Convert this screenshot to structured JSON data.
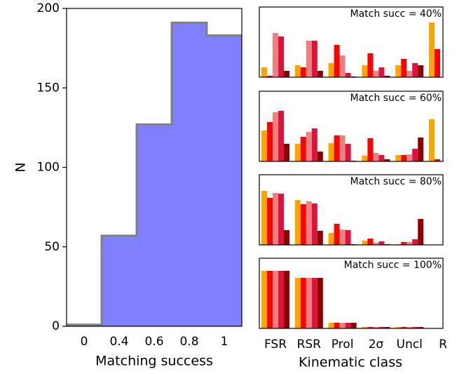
{
  "chart_data": [
    {
      "type": "step",
      "categories": [
        "0",
        "0.4",
        "0.6",
        "0.8",
        "1"
      ],
      "values": [
        1,
        57,
        127,
        191,
        183
      ],
      "color": "#8080ff",
      "edge_color": "#808080",
      "ylim": [
        0,
        200
      ],
      "yticks": [
        0,
        50,
        100,
        150,
        200
      ],
      "xlabel": "Matching success",
      "ylabel": "N"
    },
    {
      "type": "grouped-bar",
      "annotation": "Match succ = 40%",
      "ylim": [
        0,
        1
      ],
      "series": [
        {
          "color": "#ffa500",
          "values": [
            0.14,
            0.17,
            0.2,
            0.17,
            0.17,
            0.78
          ]
        },
        {
          "color": "#ff0000",
          "values": [
            0.02,
            0.14,
            0.46,
            0.34,
            0.26,
            0.4
          ]
        },
        {
          "color": "#f08080",
          "values": [
            0.63,
            0.52,
            0.31,
            0.09,
            0.09,
            null
          ]
        },
        {
          "color": "#dc143c",
          "values": [
            0.58,
            0.52,
            0.06,
            0.14,
            0.2,
            null
          ]
        },
        {
          "color": "#8b0000",
          "values": [
            0.09,
            0.09,
            0.01,
            0.02,
            0.17,
            null
          ]
        }
      ]
    },
    {
      "type": "grouped-bar",
      "annotation": "Match succ = 60%",
      "ylim": [
        0,
        1
      ],
      "series": [
        {
          "color": "#ffa500",
          "values": [
            0.44,
            0.25,
            0.26,
            0.08,
            0.09,
            0.6
          ]
        },
        {
          "color": "#ff0000",
          "values": [
            0.56,
            0.35,
            0.37,
            0.33,
            0.09,
            0.03
          ]
        },
        {
          "color": "#f08080",
          "values": [
            0.7,
            0.42,
            0.37,
            0.12,
            0.1,
            null
          ]
        },
        {
          "color": "#dc143c",
          "values": [
            0.72,
            0.47,
            0.25,
            0.09,
            0.18,
            null
          ]
        },
        {
          "color": "#8b0000",
          "values": [
            0.25,
            0.14,
            0.01,
            0.03,
            0.34,
            null
          ]
        }
      ]
    },
    {
      "type": "grouped-bar",
      "annotation": "Match succ = 80%",
      "ylim": [
        0,
        1
      ],
      "series": [
        {
          "color": "#ffa500",
          "values": [
            0.77,
            0.64,
            0.17,
            0.06,
            0.01,
            null
          ]
        },
        {
          "color": "#ff0000",
          "values": [
            0.67,
            0.58,
            0.3,
            0.09,
            0.04,
            null
          ]
        },
        {
          "color": "#f08080",
          "values": [
            0.74,
            0.62,
            0.22,
            0.03,
            0.04,
            null
          ]
        },
        {
          "color": "#dc143c",
          "values": [
            0.73,
            0.59,
            0.21,
            0.05,
            0.08,
            null
          ]
        },
        {
          "color": "#8b0000",
          "values": [
            0.21,
            0.2,
            0.01,
            0.01,
            0.37,
            null
          ]
        }
      ]
    },
    {
      "type": "grouped-bar",
      "annotation": "Match succ = 100%",
      "ylim": [
        0,
        1
      ],
      "categories": [
        "FSR",
        "RSR",
        "Prol",
        "2σ",
        "Uncl",
        "R"
      ],
      "xlabel": "Kinematic class",
      "series": [
        {
          "color": "#ffa500",
          "values": [
            0.82,
            0.72,
            0.08,
            0.02,
            0.02,
            null
          ]
        },
        {
          "color": "#ff0000",
          "values": [
            0.82,
            0.72,
            0.08,
            0.02,
            0.02,
            null
          ]
        },
        {
          "color": "#f08080",
          "values": [
            0.82,
            0.72,
            0.08,
            0.02,
            0.02,
            null
          ]
        },
        {
          "color": "#dc143c",
          "values": [
            0.82,
            0.72,
            0.08,
            0.02,
            0.02,
            null
          ]
        },
        {
          "color": "#8b0000",
          "values": [
            0.82,
            0.72,
            0.08,
            0.02,
            0.02,
            null
          ]
        }
      ]
    }
  ]
}
